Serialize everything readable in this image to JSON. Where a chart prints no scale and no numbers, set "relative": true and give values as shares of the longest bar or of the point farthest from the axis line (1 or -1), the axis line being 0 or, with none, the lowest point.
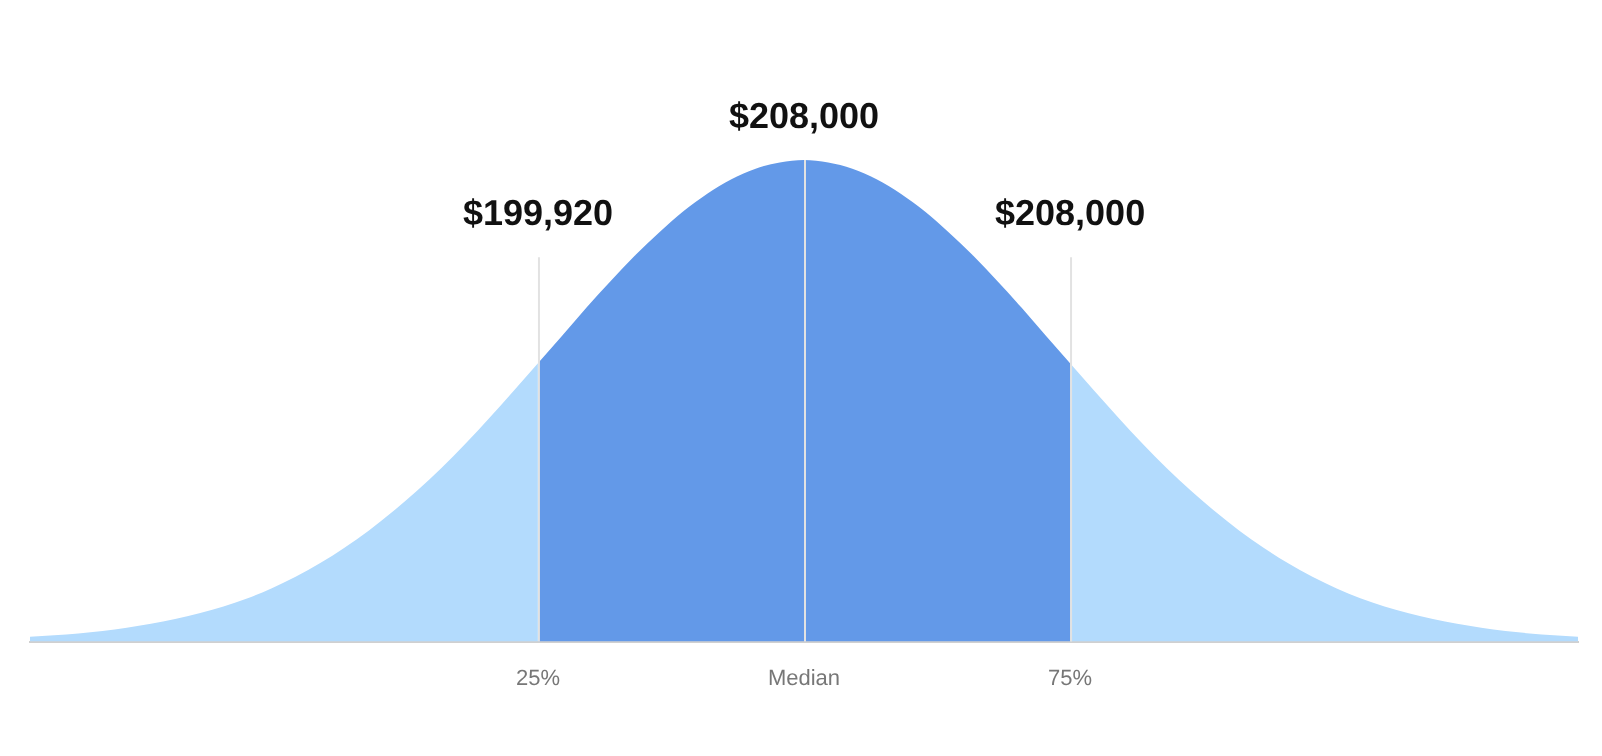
{
  "chart_data": {
    "type": "area",
    "relative": true,
    "categories": [
      null,
      null,
      null,
      null,
      null,
      null,
      null,
      null,
      null,
      null,
      null,
      null,
      null,
      null,
      null,
      null,
      null,
      null,
      null,
      null,
      null,
      "25%",
      null,
      null,
      null,
      null,
      null,
      null,
      null,
      null,
      null,
      null,
      "Median",
      null,
      null,
      null,
      null,
      null,
      null,
      null,
      null,
      null,
      null,
      "75%",
      null,
      null,
      null,
      null,
      null,
      null,
      null,
      null,
      null,
      null,
      null,
      null,
      null,
      null,
      null,
      null,
      null,
      null,
      null,
      null,
      null
    ],
    "series": [
      {
        "color": "#b3dbfd",
        "values": [
          0.01,
          0.013,
          0.017,
          0.022,
          0.029,
          0.037,
          0.047,
          0.059,
          0.073,
          0.09,
          0.111,
          0.135,
          0.163,
          0.195,
          0.23,
          0.27,
          0.313,
          0.36,
          0.411,
          0.465,
          0.521,
          0.578,
          null,
          null,
          null,
          null,
          null,
          null,
          null,
          null,
          null,
          null,
          null,
          null,
          null,
          null,
          null,
          null,
          null,
          null,
          null,
          null,
          null,
          0.578,
          0.521,
          0.465,
          0.411,
          0.36,
          0.313,
          0.27,
          0.23,
          0.195,
          0.163,
          0.135,
          0.111,
          0.09,
          0.073,
          0.059,
          0.047,
          0.037,
          0.029,
          0.022,
          0.017,
          0.013,
          0.01
        ]
      },
      {
        "color": "#6399e8",
        "values": [
          null,
          null,
          null,
          null,
          null,
          null,
          null,
          null,
          null,
          null,
          null,
          null,
          null,
          null,
          null,
          null,
          null,
          null,
          null,
          null,
          null,
          0.578,
          0.635,
          0.693,
          0.748,
          0.801,
          0.849,
          0.893,
          0.93,
          0.96,
          0.982,
          0.995,
          1,
          0.995,
          0.982,
          0.96,
          0.93,
          0.893,
          0.849,
          0.801,
          0.748,
          0.693,
          0.635,
          0.578,
          null,
          null,
          null,
          null,
          null,
          null,
          null,
          null,
          null,
          null,
          null,
          null,
          null,
          null,
          null,
          null,
          null,
          null,
          null,
          null,
          null
        ]
      }
    ],
    "ref_lines": [
      {
        "axis": "x",
        "value": "25%",
        "label": "$199,920"
      },
      {
        "axis": "x",
        "value": "Median",
        "label": "$208,000"
      },
      {
        "axis": "x",
        "value": "75%",
        "label": "$208,000"
      }
    ]
  }
}
